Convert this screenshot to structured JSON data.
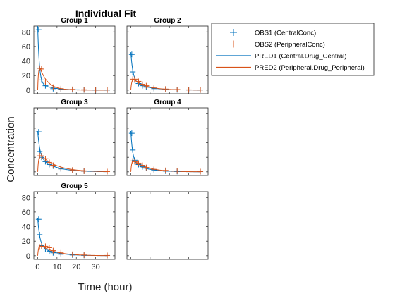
{
  "chart_data": {
    "type": "line",
    "title": "Individual Fit",
    "xlabel": "Time (hour)",
    "ylabel": "Concentration",
    "xlim": [
      -2,
      40
    ],
    "ylim": [
      -5,
      88
    ],
    "xticks": [
      0,
      10,
      20,
      30
    ],
    "yticks": [
      0,
      20,
      40,
      60,
      80
    ],
    "colors": {
      "central": "#0072BD",
      "peripheral": "#D95319"
    },
    "legend": {
      "placement": "top-right",
      "entries": [
        {
          "label": "OBS1 (CentralConc)",
          "marker": "plus",
          "color": "#0072BD"
        },
        {
          "label": "OBS2 (PeripheralConc)",
          "marker": "plus",
          "color": "#D95319"
        },
        {
          "label": "PRED1 (Central.Drug_Central)",
          "marker": "line",
          "color": "#0072BD"
        },
        {
          "label": "PRED2 (Peripheral.Drug_Peripheral)",
          "marker": "line",
          "color": "#D95319"
        }
      ]
    },
    "groups": [
      {
        "name": "Group 1",
        "obs1": {
          "x": [
            0.5,
            1,
            2,
            4,
            8,
            12,
            18,
            24,
            30,
            36
          ],
          "y": [
            83,
            30,
            14,
            6,
            2,
            1,
            0.5,
            0.3,
            0.2,
            0.1
          ]
        },
        "obs2": {
          "x": [
            1,
            2,
            4,
            8,
            12,
            18,
            24,
            30,
            36
          ],
          "y": [
            30,
            29,
            11,
            4,
            2,
            1,
            0.5,
            0.3,
            0.2
          ]
        },
        "pred1": {
          "A": 78,
          "k1": 1.2,
          "B": 10,
          "k2": 0.15
        },
        "pred2": {
          "C": 42,
          "ke": 0.25,
          "ka": 2.5
        }
      },
      {
        "name": "Group 2",
        "obs1": {
          "x": [
            0.5,
            1,
            2,
            4,
            6,
            8,
            12,
            18,
            24,
            30,
            36
          ],
          "y": [
            49,
            25,
            14,
            9,
            6,
            4,
            2,
            1,
            0.5,
            0.3,
            0.2
          ]
        },
        "obs2": {
          "x": [
            1,
            2,
            4,
            6,
            8,
            12,
            18,
            24,
            30,
            36
          ],
          "y": [
            15,
            15,
            12,
            8,
            6,
            3,
            1.5,
            0.8,
            0.4,
            0.2
          ]
        },
        "pred1": {
          "A": 38,
          "k1": 0.9,
          "B": 14,
          "k2": 0.14
        },
        "pred2": {
          "C": 19,
          "ke": 0.15,
          "ka": 2.0
        }
      },
      {
        "name": "Group 3",
        "obs1": {
          "x": [
            0.5,
            1,
            2,
            4,
            6,
            8,
            12,
            18,
            24
          ],
          "y": [
            55,
            28,
            20,
            14,
            10,
            8,
            4,
            2,
            1
          ]
        },
        "obs2": {
          "x": [
            1,
            2,
            4,
            6,
            8,
            12,
            18,
            24,
            36
          ],
          "y": [
            22,
            22,
            18,
            13,
            9,
            5,
            2.5,
            1,
            0.4
          ]
        },
        "pred1": {
          "A": 34,
          "k1": 0.9,
          "B": 22,
          "k2": 0.13
        },
        "pred2": {
          "C": 28,
          "ke": 0.12,
          "ka": 2.0
        }
      },
      {
        "name": "Group 4",
        "obs1": {
          "x": [
            0.5,
            1,
            2,
            4,
            6,
            8,
            12,
            18,
            24,
            36
          ],
          "y": [
            53,
            30,
            16,
            10,
            7,
            5,
            2.5,
            1,
            0.5,
            0.3
          ]
        },
        "obs2": {
          "x": [
            1,
            2,
            4,
            6,
            8,
            12,
            18,
            24,
            36
          ],
          "y": [
            15,
            14,
            12,
            9,
            6,
            3.5,
            2,
            1,
            0.4
          ]
        },
        "pred1": {
          "A": 42,
          "k1": 1.0,
          "B": 14,
          "k2": 0.14
        },
        "pred2": {
          "C": 20,
          "ke": 0.14,
          "ka": 2.0
        }
      },
      {
        "name": "Group 5",
        "obs1": {
          "x": [
            0.5,
            1,
            2,
            4,
            6,
            8,
            12,
            18,
            24,
            36
          ],
          "y": [
            50,
            29,
            14,
            9,
            6,
            4,
            2,
            1,
            0.5,
            0.3
          ]
        },
        "obs2": {
          "x": [
            1,
            2,
            4,
            6,
            8,
            12,
            18,
            24,
            36
          ],
          "y": [
            12,
            13,
            13,
            11,
            7,
            4,
            2,
            1,
            0.4
          ]
        },
        "pred1": {
          "A": 38,
          "k1": 0.9,
          "B": 14,
          "k2": 0.13
        },
        "pred2": {
          "C": 18,
          "ke": 0.13,
          "ka": 2.0
        }
      }
    ]
  }
}
